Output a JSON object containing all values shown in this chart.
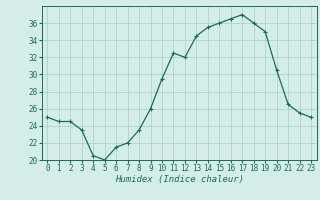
{
  "x": [
    0,
    1,
    2,
    3,
    4,
    5,
    6,
    7,
    8,
    9,
    10,
    11,
    12,
    13,
    14,
    15,
    16,
    17,
    18,
    19,
    20,
    21,
    22,
    23
  ],
  "y": [
    25.0,
    24.5,
    24.5,
    23.5,
    20.5,
    20.0,
    21.5,
    22.0,
    23.5,
    26.0,
    29.5,
    32.5,
    32.0,
    34.5,
    35.5,
    36.0,
    36.5,
    37.0,
    36.0,
    35.0,
    30.5,
    26.5,
    25.5,
    25.0
  ],
  "line_color": "#1a6b5a",
  "marker": "+",
  "marker_size": 3,
  "line_width": 0.9,
  "bg_color": "#d4ede8",
  "grid_color": "#a8cec8",
  "xlabel": "Humidex (Indice chaleur)",
  "xlim": [
    -0.5,
    23.5
  ],
  "ylim": [
    20,
    38
  ],
  "yticks": [
    20,
    22,
    24,
    26,
    28,
    30,
    32,
    34,
    36
  ],
  "xticks": [
    0,
    1,
    2,
    3,
    4,
    5,
    6,
    7,
    8,
    9,
    10,
    11,
    12,
    13,
    14,
    15,
    16,
    17,
    18,
    19,
    20,
    21,
    22,
    23
  ],
  "label_fontsize": 6.5,
  "tick_fontsize": 5.5
}
